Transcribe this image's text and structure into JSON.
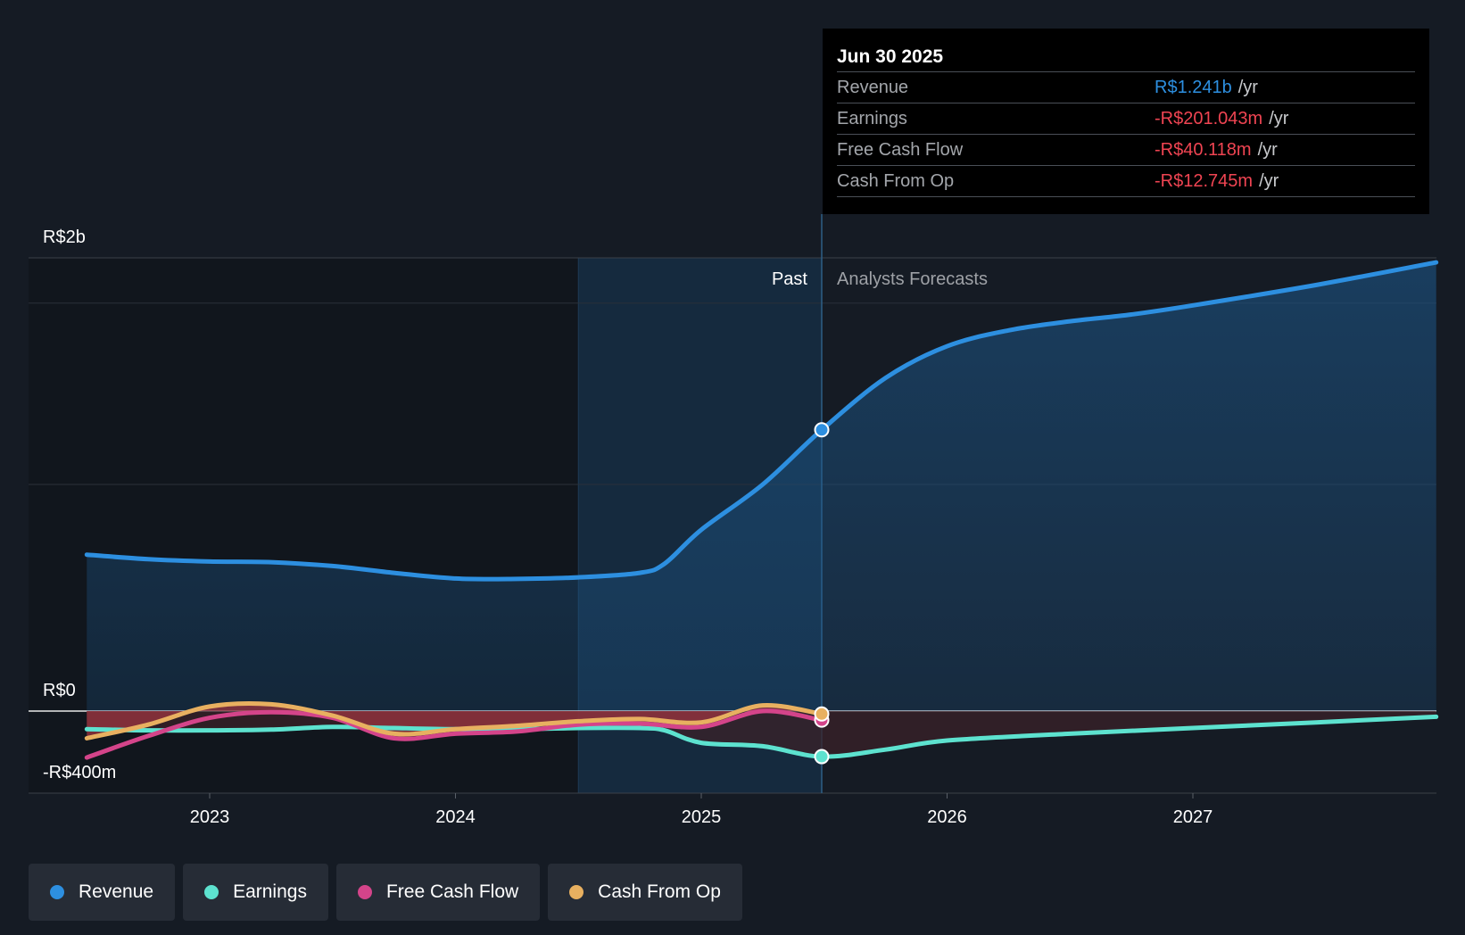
{
  "tooltip": {
    "date": "Jun 30 2025",
    "rows": [
      {
        "name": "Revenue",
        "value": "R$1.241b",
        "unit": "/yr",
        "color": "#2d8fe0"
      },
      {
        "name": "Earnings",
        "value": "-R$201.043m",
        "unit": "/yr",
        "color": "#ef4452"
      },
      {
        "name": "Free Cash Flow",
        "value": "-R$40.118m",
        "unit": "/yr",
        "color": "#ef4452"
      },
      {
        "name": "Cash From Op",
        "value": "-R$12.745m",
        "unit": "/yr",
        "color": "#ef4452"
      }
    ]
  },
  "legend": [
    {
      "label": "Revenue",
      "color": "#2d8fe0"
    },
    {
      "label": "Earnings",
      "color": "#5de2cf"
    },
    {
      "label": "Free Cash Flow",
      "color": "#d4448a"
    },
    {
      "label": "Cash From Op",
      "color": "#e8b060"
    }
  ],
  "chart_data": {
    "type": "line",
    "title": "",
    "y_labels": {
      "top": "R$2b",
      "zero": "R$0",
      "bottom": "-R$400m"
    },
    "ylim": [
      -400,
      2000
    ],
    "xlim": [
      2022.5,
      2027.99
    ],
    "x_ticks": [
      2023,
      2024,
      2025,
      2026,
      2027
    ],
    "x_tick_labels": [
      "2023",
      "2024",
      "2025",
      "2026",
      "2027"
    ],
    "past_label": "Past",
    "forecast_label": "Analysts Forecasts",
    "past_end": 2025.49,
    "highlight_start": 2024.5,
    "series": [
      {
        "name": "Revenue",
        "color": "#2d8fe0",
        "points": [
          [
            2022.5,
            690
          ],
          [
            2022.75,
            670
          ],
          [
            2023,
            660
          ],
          [
            2023.25,
            657
          ],
          [
            2023.5,
            640
          ],
          [
            2023.75,
            610
          ],
          [
            2024,
            585
          ],
          [
            2024.25,
            583
          ],
          [
            2024.5,
            590
          ],
          [
            2024.75,
            610
          ],
          [
            2024.85,
            650
          ],
          [
            2025,
            800
          ],
          [
            2025.25,
            1000
          ],
          [
            2025.49,
            1241
          ],
          [
            2025.75,
            1470
          ],
          [
            2026,
            1610
          ],
          [
            2026.25,
            1680
          ],
          [
            2026.5,
            1720
          ],
          [
            2026.75,
            1750
          ],
          [
            2027,
            1790
          ],
          [
            2027.5,
            1880
          ],
          [
            2027.99,
            1980
          ]
        ]
      },
      {
        "name": "Earnings",
        "color": "#5de2cf",
        "points": [
          [
            2022.5,
            -80
          ],
          [
            2022.75,
            -85
          ],
          [
            2023,
            -85
          ],
          [
            2023.25,
            -82
          ],
          [
            2023.5,
            -70
          ],
          [
            2023.75,
            -75
          ],
          [
            2024,
            -80
          ],
          [
            2024.25,
            -80
          ],
          [
            2024.5,
            -75
          ],
          [
            2024.75,
            -75
          ],
          [
            2024.85,
            -85
          ],
          [
            2025,
            -140
          ],
          [
            2025.25,
            -155
          ],
          [
            2025.49,
            -201
          ],
          [
            2025.75,
            -170
          ],
          [
            2026,
            -130
          ],
          [
            2026.5,
            -100
          ],
          [
            2027,
            -75
          ],
          [
            2027.5,
            -50
          ],
          [
            2027.99,
            -25
          ]
        ]
      },
      {
        "name": "Free Cash Flow",
        "color": "#d4448a",
        "points": [
          [
            2022.5,
            -205
          ],
          [
            2022.75,
            -110
          ],
          [
            2023,
            -30
          ],
          [
            2023.25,
            -5
          ],
          [
            2023.5,
            -30
          ],
          [
            2023.75,
            -120
          ],
          [
            2024,
            -100
          ],
          [
            2024.25,
            -90
          ],
          [
            2024.5,
            -60
          ],
          [
            2024.75,
            -55
          ],
          [
            2025,
            -70
          ],
          [
            2025.25,
            0
          ],
          [
            2025.49,
            -40
          ]
        ]
      },
      {
        "name": "Cash From Op",
        "color": "#e8b060",
        "points": [
          [
            2022.5,
            -120
          ],
          [
            2022.75,
            -60
          ],
          [
            2023,
            20
          ],
          [
            2023.25,
            30
          ],
          [
            2023.5,
            -20
          ],
          [
            2023.75,
            -100
          ],
          [
            2024,
            -80
          ],
          [
            2024.25,
            -65
          ],
          [
            2024.5,
            -45
          ],
          [
            2024.75,
            -35
          ],
          [
            2025,
            -50
          ],
          [
            2025.25,
            25
          ],
          [
            2025.49,
            -13
          ]
        ]
      }
    ]
  }
}
